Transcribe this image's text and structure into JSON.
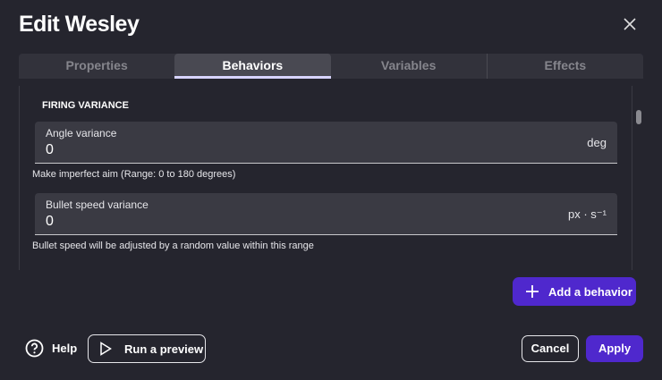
{
  "dialog": {
    "title": "Edit Wesley"
  },
  "tabs": [
    {
      "label": "Properties"
    },
    {
      "label": "Behaviors",
      "active": true
    },
    {
      "label": "Variables"
    },
    {
      "label": "Effects"
    }
  ],
  "section": {
    "title": "FIRING VARIANCE",
    "fields": [
      {
        "label": "Angle variance",
        "value": "0",
        "unit": "deg",
        "help": "Make imperfect aim (Range: 0 to 180 degrees)"
      },
      {
        "label": "Bullet speed variance",
        "value": "0",
        "unit": "px · s⁻¹",
        "help": "Bullet speed will be adjusted by a random value within this range"
      }
    ]
  },
  "buttons": {
    "add_behavior": "Add a behavior",
    "help": "Help",
    "preview": "Run a preview",
    "cancel": "Cancel",
    "apply": "Apply"
  },
  "colors": {
    "accent": "#4f28cd",
    "background": "#25252e"
  }
}
